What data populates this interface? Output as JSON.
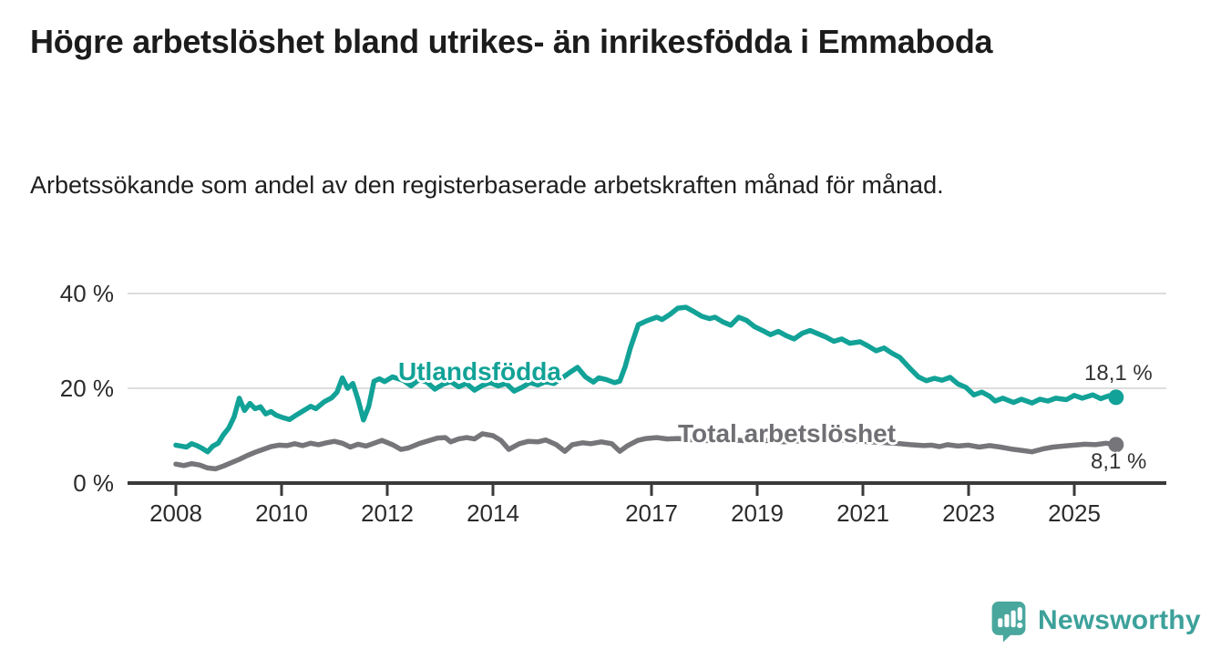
{
  "header": {
    "title": "Högre arbetslöshet bland utrikes- än inrikesfödda i Emmaboda",
    "subtitle": "Arbetssökande som andel av den registerbaserade arbetskraften månad för månad."
  },
  "chart_data": {
    "type": "line",
    "title": "Högre arbetslöshet bland utrikes- än inrikesfödda i Emmaboda",
    "subtitle": "Arbetssökande som andel av den registerbaserade arbetskraften månad för månad.",
    "grid": "horizontal",
    "legend_position": "inline-labels",
    "x_axis": {
      "ticks": [
        2008,
        2010,
        2012,
        2014,
        2017,
        2019,
        2021,
        2023,
        2025
      ],
      "range": [
        2008.0,
        2026.8
      ]
    },
    "y_axis": {
      "tick_labels": [
        "0 %",
        "20 %",
        "40 %"
      ],
      "tick_values": [
        0,
        20,
        40
      ],
      "range": [
        0,
        40
      ],
      "unit": "%"
    },
    "series": [
      {
        "name": "Utlandsfödda",
        "color": "#12a297",
        "end_label": "18,1 %",
        "end_value": 18.1,
        "points": [
          [
            2008.0,
            8.0
          ],
          [
            2008.1,
            7.8
          ],
          [
            2008.2,
            7.6
          ],
          [
            2008.3,
            8.3
          ],
          [
            2008.4,
            7.9
          ],
          [
            2008.5,
            7.3
          ],
          [
            2008.6,
            6.6
          ],
          [
            2008.7,
            7.8
          ],
          [
            2008.8,
            8.4
          ],
          [
            2008.9,
            10.2
          ],
          [
            2009.0,
            11.6
          ],
          [
            2009.1,
            13.9
          ],
          [
            2009.2,
            17.9
          ],
          [
            2009.3,
            15.3
          ],
          [
            2009.4,
            16.8
          ],
          [
            2009.5,
            15.7
          ],
          [
            2009.6,
            16.1
          ],
          [
            2009.7,
            14.6
          ],
          [
            2009.8,
            15.1
          ],
          [
            2009.9,
            14.3
          ],
          [
            2010.0,
            13.9
          ],
          [
            2010.15,
            13.4
          ],
          [
            2010.3,
            14.5
          ],
          [
            2010.45,
            15.5
          ],
          [
            2010.55,
            16.2
          ],
          [
            2010.65,
            15.7
          ],
          [
            2010.8,
            17.1
          ],
          [
            2010.95,
            18.0
          ],
          [
            2011.05,
            19.2
          ],
          [
            2011.15,
            22.2
          ],
          [
            2011.25,
            20.0
          ],
          [
            2011.35,
            21.0
          ],
          [
            2011.45,
            17.5
          ],
          [
            2011.55,
            13.3
          ],
          [
            2011.65,
            16.2
          ],
          [
            2011.75,
            21.5
          ],
          [
            2011.85,
            22.0
          ],
          [
            2011.95,
            21.4
          ],
          [
            2012.1,
            22.4
          ],
          [
            2012.3,
            21.7
          ],
          [
            2012.45,
            20.5
          ],
          [
            2012.6,
            21.8
          ],
          [
            2012.75,
            21.3
          ],
          [
            2012.9,
            19.8
          ],
          [
            2013.05,
            20.8
          ],
          [
            2013.2,
            21.4
          ],
          [
            2013.35,
            20.3
          ],
          [
            2013.5,
            21.0
          ],
          [
            2013.65,
            19.6
          ],
          [
            2013.8,
            20.6
          ],
          [
            2013.95,
            21.2
          ],
          [
            2014.1,
            20.5
          ],
          [
            2014.25,
            21.0
          ],
          [
            2014.4,
            19.4
          ],
          [
            2014.55,
            20.2
          ],
          [
            2014.7,
            21.2
          ],
          [
            2014.85,
            20.7
          ],
          [
            2015.0,
            21.4
          ],
          [
            2015.15,
            21.0
          ],
          [
            2015.3,
            22.1
          ],
          [
            2015.45,
            23.3
          ],
          [
            2015.6,
            24.4
          ],
          [
            2015.75,
            22.4
          ],
          [
            2015.9,
            21.3
          ],
          [
            2016.0,
            22.2
          ],
          [
            2016.15,
            21.8
          ],
          [
            2016.3,
            21.2
          ],
          [
            2016.4,
            21.5
          ],
          [
            2016.5,
            24.5
          ],
          [
            2016.6,
            28.5
          ],
          [
            2016.75,
            33.4
          ],
          [
            2016.9,
            34.2
          ],
          [
            2017.0,
            34.6
          ],
          [
            2017.1,
            35.0
          ],
          [
            2017.2,
            34.5
          ],
          [
            2017.35,
            35.6
          ],
          [
            2017.5,
            36.9
          ],
          [
            2017.65,
            37.1
          ],
          [
            2017.8,
            36.2
          ],
          [
            2017.95,
            35.2
          ],
          [
            2018.1,
            34.7
          ],
          [
            2018.2,
            35.0
          ],
          [
            2018.35,
            34.0
          ],
          [
            2018.5,
            33.3
          ],
          [
            2018.65,
            35.0
          ],
          [
            2018.8,
            34.3
          ],
          [
            2018.95,
            33.0
          ],
          [
            2019.1,
            32.2
          ],
          [
            2019.25,
            31.3
          ],
          [
            2019.4,
            32.0
          ],
          [
            2019.55,
            31.1
          ],
          [
            2019.7,
            30.4
          ],
          [
            2019.85,
            31.6
          ],
          [
            2020.0,
            32.2
          ],
          [
            2020.15,
            31.5
          ],
          [
            2020.3,
            30.8
          ],
          [
            2020.45,
            29.9
          ],
          [
            2020.6,
            30.4
          ],
          [
            2020.75,
            29.5
          ],
          [
            2020.95,
            29.8
          ],
          [
            2021.1,
            28.9
          ],
          [
            2021.25,
            27.9
          ],
          [
            2021.4,
            28.5
          ],
          [
            2021.55,
            27.4
          ],
          [
            2021.7,
            26.5
          ],
          [
            2021.9,
            24.1
          ],
          [
            2022.05,
            22.4
          ],
          [
            2022.2,
            21.6
          ],
          [
            2022.35,
            22.1
          ],
          [
            2022.5,
            21.7
          ],
          [
            2022.65,
            22.3
          ],
          [
            2022.8,
            20.9
          ],
          [
            2022.95,
            20.2
          ],
          [
            2023.1,
            18.6
          ],
          [
            2023.25,
            19.2
          ],
          [
            2023.4,
            18.3
          ],
          [
            2023.5,
            17.3
          ],
          [
            2023.65,
            17.9
          ],
          [
            2023.85,
            17.0
          ],
          [
            2024.0,
            17.7
          ],
          [
            2024.2,
            16.9
          ],
          [
            2024.35,
            17.7
          ],
          [
            2024.5,
            17.3
          ],
          [
            2024.65,
            17.9
          ],
          [
            2024.85,
            17.6
          ],
          [
            2025.0,
            18.5
          ],
          [
            2025.15,
            17.9
          ],
          [
            2025.35,
            18.6
          ],
          [
            2025.5,
            17.8
          ],
          [
            2025.65,
            18.4
          ],
          [
            2025.79,
            18.1
          ]
        ]
      },
      {
        "name": "Total arbetslöshet",
        "color": "#76767a",
        "end_label": "8,1 %",
        "end_value": 8.1,
        "points": [
          [
            2008.0,
            4.0
          ],
          [
            2008.15,
            3.7
          ],
          [
            2008.3,
            4.1
          ],
          [
            2008.45,
            3.8
          ],
          [
            2008.6,
            3.2
          ],
          [
            2008.75,
            3.0
          ],
          [
            2008.9,
            3.6
          ],
          [
            2009.05,
            4.3
          ],
          [
            2009.2,
            5.0
          ],
          [
            2009.35,
            5.8
          ],
          [
            2009.5,
            6.5
          ],
          [
            2009.65,
            7.1
          ],
          [
            2009.8,
            7.7
          ],
          [
            2009.95,
            8.0
          ],
          [
            2010.1,
            7.9
          ],
          [
            2010.25,
            8.3
          ],
          [
            2010.4,
            7.9
          ],
          [
            2010.55,
            8.4
          ],
          [
            2010.7,
            8.1
          ],
          [
            2010.85,
            8.5
          ],
          [
            2011.0,
            8.8
          ],
          [
            2011.15,
            8.4
          ],
          [
            2011.3,
            7.6
          ],
          [
            2011.45,
            8.2
          ],
          [
            2011.6,
            7.8
          ],
          [
            2011.75,
            8.4
          ],
          [
            2011.9,
            9.0
          ],
          [
            2012.1,
            8.1
          ],
          [
            2012.26,
            7.1
          ],
          [
            2012.4,
            7.4
          ],
          [
            2012.6,
            8.3
          ],
          [
            2012.8,
            9.0
          ],
          [
            2012.95,
            9.5
          ],
          [
            2013.1,
            9.6
          ],
          [
            2013.2,
            8.7
          ],
          [
            2013.35,
            9.3
          ],
          [
            2013.5,
            9.6
          ],
          [
            2013.65,
            9.3
          ],
          [
            2013.8,
            10.4
          ],
          [
            2014.0,
            10.0
          ],
          [
            2014.15,
            9.0
          ],
          [
            2014.3,
            7.1
          ],
          [
            2014.5,
            8.3
          ],
          [
            2014.67,
            8.8
          ],
          [
            2014.85,
            8.7
          ],
          [
            2015.0,
            9.1
          ],
          [
            2015.2,
            8.1
          ],
          [
            2015.36,
            6.7
          ],
          [
            2015.5,
            8.1
          ],
          [
            2015.7,
            8.5
          ],
          [
            2015.85,
            8.3
          ],
          [
            2016.05,
            8.7
          ],
          [
            2016.25,
            8.3
          ],
          [
            2016.4,
            6.7
          ],
          [
            2016.55,
            7.9
          ],
          [
            2016.74,
            9.0
          ],
          [
            2016.9,
            9.4
          ],
          [
            2017.1,
            9.6
          ],
          [
            2017.3,
            9.3
          ],
          [
            2017.5,
            9.4
          ],
          [
            2017.7,
            9.2
          ],
          [
            2018.0,
            9.0
          ],
          [
            2018.3,
            8.8
          ],
          [
            2018.6,
            9.1
          ],
          [
            2018.9,
            8.8
          ],
          [
            2019.2,
            9.0
          ],
          [
            2019.5,
            8.7
          ],
          [
            2019.8,
            8.9
          ],
          [
            2020.1,
            9.1
          ],
          [
            2020.4,
            9.3
          ],
          [
            2020.7,
            9.0
          ],
          [
            2021.0,
            8.8
          ],
          [
            2021.3,
            8.6
          ],
          [
            2021.6,
            8.4
          ],
          [
            2021.9,
            8.1
          ],
          [
            2022.15,
            7.9
          ],
          [
            2022.3,
            8.0
          ],
          [
            2022.45,
            7.7
          ],
          [
            2022.6,
            8.1
          ],
          [
            2022.8,
            7.8
          ],
          [
            2023.0,
            8.0
          ],
          [
            2023.2,
            7.6
          ],
          [
            2023.4,
            7.9
          ],
          [
            2023.6,
            7.6
          ],
          [
            2023.8,
            7.2
          ],
          [
            2024.0,
            6.9
          ],
          [
            2024.2,
            6.6
          ],
          [
            2024.4,
            7.2
          ],
          [
            2024.6,
            7.6
          ],
          [
            2024.8,
            7.8
          ],
          [
            2025.0,
            8.0
          ],
          [
            2025.2,
            8.2
          ],
          [
            2025.4,
            8.1
          ],
          [
            2025.6,
            8.4
          ],
          [
            2025.79,
            8.1
          ]
        ]
      }
    ],
    "colors": {
      "grid": "#dddddd",
      "axis": "#3a3a3a",
      "tick_text": "#2b2b2b",
      "value_label_text": "#333333",
      "accent_teal": "#12a297",
      "accent_gray": "#6f6f74",
      "brand_teal": "#3ca19a"
    }
  },
  "branding": {
    "logo_text": "Newsworthy",
    "logo_icon": "speech-bubble-bar-chart-icon"
  }
}
